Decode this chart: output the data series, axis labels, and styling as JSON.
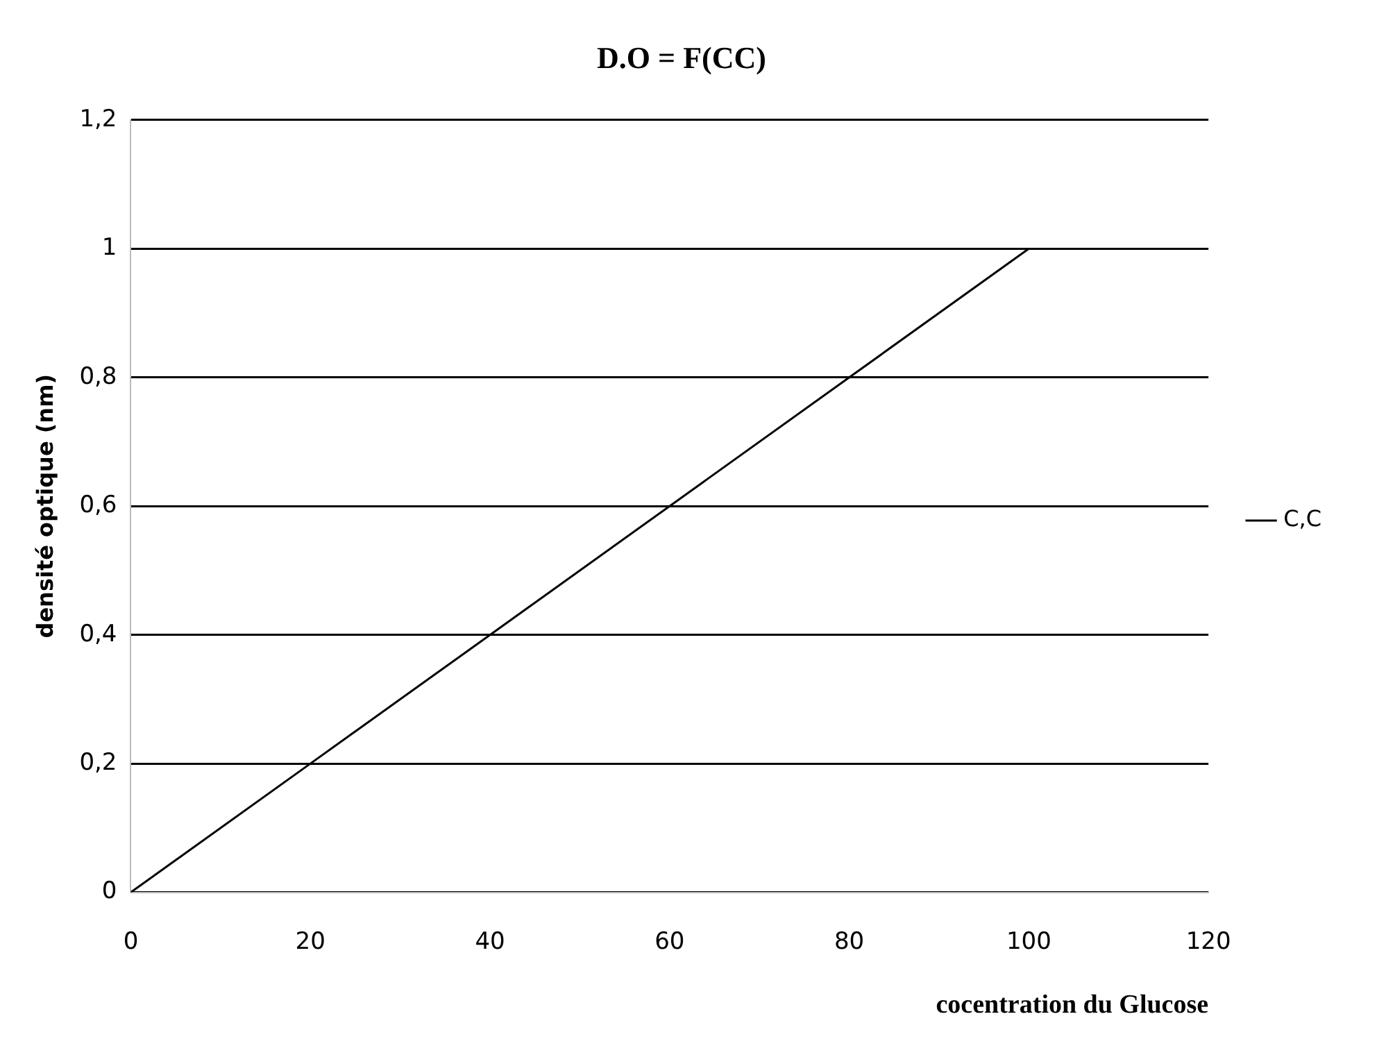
{
  "chart_data": {
    "type": "line",
    "title": "D.O = F(CC)",
    "xlabel": "cocentration du Glucose",
    "ylabel": "densité optique (nm)",
    "x": [
      0,
      20,
      40,
      60,
      80,
      100
    ],
    "series": [
      {
        "name": "C,C",
        "color": "#000000",
        "values": [
          0,
          0.2,
          0.4,
          0.6,
          0.8,
          1
        ]
      }
    ],
    "xlim": [
      0,
      120
    ],
    "xticks": [
      0,
      20,
      40,
      60,
      80,
      100,
      120
    ],
    "ylim": [
      0,
      1.2
    ],
    "yticks": [
      {
        "value": 0,
        "label": "0"
      },
      {
        "value": 0.2,
        "label": "0,2"
      },
      {
        "value": 0.4,
        "label": "0,4"
      },
      {
        "value": 0.6,
        "label": "0,6"
      },
      {
        "value": 0.8,
        "label": "0,8"
      },
      {
        "value": 1,
        "label": "1"
      },
      {
        "value": 1.2,
        "label": "1,2"
      }
    ],
    "grid": "y",
    "legend": "right",
    "marker": "none",
    "line_style": "solid"
  }
}
